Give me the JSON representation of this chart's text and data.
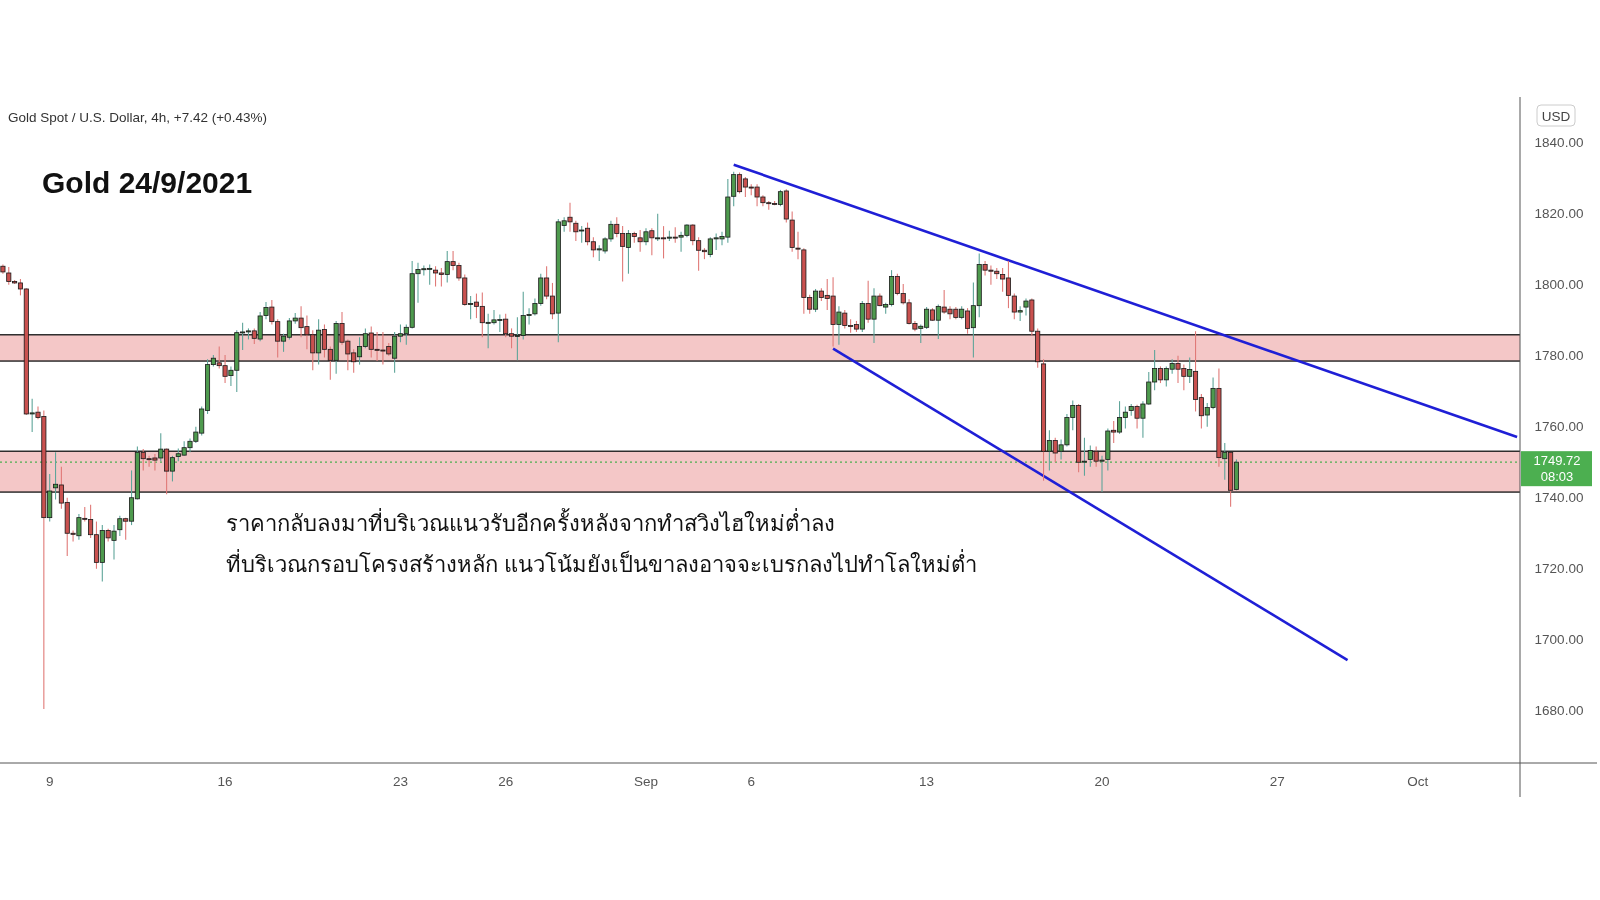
{
  "chart_data": {
    "type": "candlestick",
    "title": "Gold 24/9/2021",
    "subtitle": "Gold Spot / U.S. Dollar, 4h, +7.42 (+0.43%)",
    "ylabel": "USD",
    "annotations": [
      "ราคากลับลงมาที่บริเวณแนวรับอีกครั้งหลังจากทำสวิงไฮใหม่ต่ำลง",
      "ที่บริเวณกรอบโครงสร้างหลัก แนวโน้มยังเป็นขาลงอาจจะเบรกลงไปทำโลใหม่ต่ำ",
      "08:03"
    ],
    "ylim": [
      1665,
      1852
    ],
    "yticks": [
      {
        "value": 1680,
        "label": "1680.00"
      },
      {
        "value": 1700,
        "label": "1700.00"
      },
      {
        "value": 1720,
        "label": "1720.00"
      },
      {
        "value": 1740,
        "label": "1740.00"
      },
      {
        "value": 1760,
        "label": "1760.00"
      },
      {
        "value": 1780,
        "label": "1780.00"
      },
      {
        "value": 1800,
        "label": "1800.00"
      },
      {
        "value": 1820,
        "label": "1820.00"
      },
      {
        "value": 1840,
        "label": "1840.00"
      }
    ],
    "grid": false,
    "categories": [
      null,
      null,
      null,
      null,
      null,
      null,
      null,
      null,
      "9",
      null,
      null,
      null,
      null,
      null,
      null,
      null,
      null,
      null,
      null,
      null,
      null,
      null,
      null,
      null,
      null,
      null,
      null,
      null,
      null,
      null,
      null,
      null,
      null,
      null,
      null,
      null,
      null,
      null,
      "16",
      null,
      null,
      null,
      null,
      null,
      null,
      null,
      null,
      null,
      null,
      null,
      null,
      null,
      null,
      null,
      null,
      null,
      null,
      null,
      null,
      null,
      null,
      null,
      null,
      null,
      null,
      null,
      null,
      null,
      "23",
      null,
      null,
      null,
      null,
      null,
      null,
      null,
      null,
      null,
      null,
      null,
      null,
      null,
      null,
      null,
      null,
      null,
      "26",
      null,
      null,
      null,
      null,
      null,
      null,
      null,
      null,
      null,
      null,
      null,
      null,
      null,
      null,
      null,
      null,
      null,
      null,
      null,
      null,
      null,
      null,
      null,
      "Sep",
      null,
      null,
      null,
      null,
      null,
      null,
      null,
      null,
      null,
      null,
      null,
      null,
      null,
      null,
      null,
      null,
      null,
      "6",
      null,
      null,
      null,
      null,
      null,
      null,
      null,
      null,
      null,
      null,
      null,
      null,
      null,
      null,
      null,
      null,
      null,
      null,
      null,
      null,
      null,
      null,
      null,
      null,
      null,
      null,
      null,
      null,
      null,
      "13",
      null,
      null,
      null,
      null,
      null,
      null,
      null,
      null,
      null,
      null,
      null,
      null,
      null,
      null,
      null,
      null,
      null,
      null,
      null,
      null,
      null,
      null,
      null,
      null,
      null,
      null,
      null,
      null,
      null,
      "20",
      null,
      null,
      null,
      null,
      null,
      null,
      null,
      null,
      null,
      null,
      null,
      null,
      null,
      null,
      null,
      null,
      null,
      null,
      null,
      null,
      null,
      null,
      null,
      null,
      null,
      null,
      null,
      null,
      null,
      "27",
      null,
      null,
      null,
      null,
      null,
      null,
      null,
      null,
      null,
      null,
      null,
      null,
      null,
      null,
      null,
      null,
      null,
      null,
      null,
      null,
      null,
      null,
      null,
      "Oct",
      null,
      null,
      null,
      null,
      null,
      null,
      null,
      null,
      null,
      null,
      null,
      null,
      null,
      null,
      null,
      null,
      null
    ],
    "ohlc": [
      [
        1804.9,
        1805.4,
        1802.8,
        1803.3
      ],
      [
        1803.0,
        1804.7,
        1799.7,
        1800.6
      ],
      [
        1800.6,
        1801.0,
        1799.9,
        1800.2
      ],
      [
        1800.2,
        1801.3,
        1796.7,
        1798.5
      ],
      [
        1798.5,
        1798.7,
        1763.0,
        1763.3
      ],
      [
        1763.3,
        1767.6,
        1758.2,
        1763.6
      ],
      [
        1763.8,
        1765.4,
        1761.8,
        1762.3
      ],
      [
        1762.6,
        1764.3,
        1680.2,
        1734.1
      ],
      [
        1734.1,
        1746.4,
        1733.0,
        1741.6
      ],
      [
        1742.5,
        1752.5,
        1739.2,
        1743.5
      ],
      [
        1743.3,
        1748.4,
        1736.6,
        1738.2
      ],
      [
        1738.4,
        1739.7,
        1723.3,
        1729.7
      ],
      [
        1729.7,
        1730.5,
        1727.4,
        1729.4
      ],
      [
        1729.0,
        1735.1,
        1727.9,
        1734.1
      ],
      [
        1733.9,
        1737.1,
        1733.0,
        1733.8
      ],
      [
        1733.6,
        1737.7,
        1728.4,
        1729.3
      ],
      [
        1729.3,
        1733.0,
        1719.7,
        1721.5
      ],
      [
        1721.5,
        1732.0,
        1716.1,
        1730.5
      ],
      [
        1730.5,
        1731.0,
        1727.4,
        1728.4
      ],
      [
        1727.7,
        1732.0,
        1722.3,
        1730.3
      ],
      [
        1730.7,
        1734.6,
        1728.9,
        1733.8
      ],
      [
        1733.8,
        1734.1,
        1727.9,
        1733.1
      ],
      [
        1733.1,
        1747.4,
        1732.0,
        1739.7
      ],
      [
        1739.4,
        1754.1,
        1739.2,
        1752.5
      ],
      [
        1752.5,
        1753.4,
        1747.4,
        1750.7
      ],
      [
        1750.7,
        1751.5,
        1748.4,
        1750.6
      ],
      [
        1750.9,
        1752.0,
        1747.4,
        1750.3
      ],
      [
        1750.9,
        1757.9,
        1750.0,
        1753.4
      ],
      [
        1753.4,
        1753.6,
        1740.7,
        1747.2
      ],
      [
        1747.2,
        1751.5,
        1744.3,
        1751.0
      ],
      [
        1751.3,
        1753.6,
        1750.0,
        1752.1
      ],
      [
        1751.7,
        1755.6,
        1751.5,
        1753.8
      ],
      [
        1753.8,
        1756.4,
        1752.5,
        1755.6
      ],
      [
        1755.6,
        1759.7,
        1755.1,
        1758.2
      ],
      [
        1757.9,
        1765.4,
        1757.2,
        1764.7
      ],
      [
        1764.3,
        1778.7,
        1763.3,
        1777.2
      ],
      [
        1777.2,
        1779.9,
        1776.7,
        1779.0
      ],
      [
        1777.7,
        1782.3,
        1776.1,
        1776.9
      ],
      [
        1776.9,
        1779.9,
        1772.0,
        1773.9
      ],
      [
        1774.1,
        1776.7,
        1771.2,
        1775.6
      ],
      [
        1775.6,
        1786.9,
        1769.5,
        1786.2
      ],
      [
        1786.2,
        1789.0,
        1781.3,
        1786.4
      ],
      [
        1786.4,
        1787.4,
        1784.3,
        1786.7
      ],
      [
        1786.7,
        1787.4,
        1783.0,
        1784.6
      ],
      [
        1784.4,
        1792.0,
        1783.8,
        1790.9
      ],
      [
        1791.0,
        1794.8,
        1790.0,
        1793.3
      ],
      [
        1793.4,
        1795.4,
        1788.5,
        1789.3
      ],
      [
        1789.3,
        1790.0,
        1779.2,
        1783.8
      ],
      [
        1783.8,
        1785.9,
        1780.8,
        1785.2
      ],
      [
        1784.9,
        1790.3,
        1784.3,
        1789.5
      ],
      [
        1789.5,
        1791.7,
        1788.7,
        1790.3
      ],
      [
        1790.3,
        1793.6,
        1784.9,
        1787.6
      ],
      [
        1787.9,
        1791.0,
        1781.5,
        1785.6
      ],
      [
        1785.6,
        1786.9,
        1775.6,
        1780.5
      ],
      [
        1780.5,
        1790.0,
        1777.2,
        1786.9
      ],
      [
        1787.1,
        1788.5,
        1779.2,
        1781.5
      ],
      [
        1781.5,
        1782.3,
        1772.9,
        1778.4
      ],
      [
        1778.4,
        1789.5,
        1774.6,
        1788.8
      ],
      [
        1788.8,
        1792.0,
        1782.8,
        1783.5
      ],
      [
        1783.8,
        1784.3,
        1775.6,
        1780.2
      ],
      [
        1780.5,
        1781.5,
        1774.9,
        1778.0
      ],
      [
        1779.4,
        1784.9,
        1777.2,
        1782.3
      ],
      [
        1782.3,
        1787.4,
        1781.8,
        1785.9
      ],
      [
        1786.1,
        1787.9,
        1779.2,
        1781.5
      ],
      [
        1781.5,
        1786.4,
        1778.2,
        1781.3
      ],
      [
        1781.3,
        1786.4,
        1777.2,
        1781.2
      ],
      [
        1782.3,
        1783.3,
        1779.7,
        1780.2
      ],
      [
        1779.0,
        1786.4,
        1774.9,
        1785.2
      ],
      [
        1785.2,
        1788.5,
        1783.5,
        1785.9
      ],
      [
        1785.9,
        1788.5,
        1782.8,
        1787.7
      ],
      [
        1787.7,
        1806.4,
        1787.4,
        1802.8
      ],
      [
        1802.8,
        1805.9,
        1794.6,
        1804.0
      ],
      [
        1804.0,
        1805.1,
        1802.3,
        1804.2
      ],
      [
        1804.2,
        1805.4,
        1799.7,
        1804.3
      ],
      [
        1803.8,
        1804.9,
        1799.2,
        1803.0
      ],
      [
        1803.0,
        1804.4,
        1799.2,
        1802.6
      ],
      [
        1802.6,
        1809.2,
        1800.3,
        1806.2
      ],
      [
        1806.2,
        1809.2,
        1803.8,
        1805.1
      ],
      [
        1805.1,
        1805.9,
        1800.8,
        1801.6
      ],
      [
        1801.6,
        1802.6,
        1793.8,
        1794.1
      ],
      [
        1794.1,
        1796.5,
        1790.0,
        1794.4
      ],
      [
        1794.8,
        1797.2,
        1790.3,
        1793.6
      ],
      [
        1793.6,
        1797.5,
        1784.9,
        1789.0
      ],
      [
        1789.0,
        1791.5,
        1781.8,
        1789.1
      ],
      [
        1789.0,
        1792.6,
        1788.5,
        1789.8
      ],
      [
        1789.8,
        1791.3,
        1786.4,
        1789.9
      ],
      [
        1790.0,
        1791.5,
        1784.9,
        1785.9
      ],
      [
        1785.9,
        1787.4,
        1781.8,
        1785.2
      ],
      [
        1785.2,
        1790.5,
        1778.4,
        1785.4
      ],
      [
        1785.4,
        1797.7,
        1784.3,
        1791.0
      ],
      [
        1791.0,
        1793.1,
        1788.5,
        1791.3
      ],
      [
        1791.5,
        1795.8,
        1791.0,
        1794.4
      ],
      [
        1794.4,
        1802.8,
        1793.8,
        1801.6
      ],
      [
        1801.6,
        1804.9,
        1795.6,
        1796.5
      ],
      [
        1796.5,
        1800.2,
        1790.0,
        1791.5
      ],
      [
        1791.7,
        1818.2,
        1783.5,
        1817.4
      ],
      [
        1816.4,
        1818.7,
        1814.6,
        1817.7
      ],
      [
        1818.7,
        1822.8,
        1814.6,
        1817.4
      ],
      [
        1817.0,
        1817.7,
        1812.0,
        1814.6
      ],
      [
        1814.9,
        1816.2,
        1811.5,
        1815.1
      ],
      [
        1815.6,
        1817.2,
        1810.8,
        1811.8
      ],
      [
        1811.8,
        1813.1,
        1807.4,
        1809.5
      ],
      [
        1809.5,
        1810.8,
        1806.4,
        1809.8
      ],
      [
        1809.2,
        1813.1,
        1808.5,
        1812.6
      ],
      [
        1812.6,
        1817.7,
        1811.8,
        1816.7
      ],
      [
        1816.7,
        1818.7,
        1813.1,
        1814.1
      ],
      [
        1814.1,
        1816.2,
        1800.6,
        1810.5
      ],
      [
        1810.2,
        1815.1,
        1802.8,
        1814.1
      ],
      [
        1814.1,
        1814.6,
        1811.5,
        1813.3
      ],
      [
        1812.9,
        1815.1,
        1809.0,
        1811.8
      ],
      [
        1811.8,
        1815.6,
        1810.8,
        1814.6
      ],
      [
        1814.9,
        1815.6,
        1808.0,
        1812.9
      ],
      [
        1812.8,
        1819.7,
        1812.0,
        1812.9
      ],
      [
        1812.9,
        1816.2,
        1807.1,
        1812.8
      ],
      [
        1812.8,
        1814.9,
        1812.0,
        1813.1
      ],
      [
        1813.1,
        1815.9,
        1811.5,
        1813.0
      ],
      [
        1813.1,
        1814.6,
        1809.0,
        1813.6
      ],
      [
        1813.6,
        1816.7,
        1813.1,
        1816.5
      ],
      [
        1816.5,
        1816.7,
        1810.8,
        1812.1
      ],
      [
        1812.1,
        1813.1,
        1803.6,
        1809.4
      ],
      [
        1809.4,
        1810.0,
        1806.9,
        1809.0
      ],
      [
        1808.2,
        1813.1,
        1807.4,
        1812.6
      ],
      [
        1812.6,
        1814.1,
        1809.5,
        1812.9
      ],
      [
        1812.6,
        1814.6,
        1810.8,
        1813.3
      ],
      [
        1813.1,
        1829.5,
        1811.5,
        1824.4
      ],
      [
        1824.6,
        1831.5,
        1821.8,
        1830.7
      ],
      [
        1830.7,
        1831.3,
        1825.4,
        1825.9
      ],
      [
        1829.5,
        1830.0,
        1824.4,
        1827.2
      ],
      [
        1827.2,
        1828.0,
        1824.9,
        1827.0
      ],
      [
        1827.2,
        1828.0,
        1821.8,
        1824.4
      ],
      [
        1824.4,
        1824.9,
        1821.8,
        1822.8
      ],
      [
        1822.8,
        1823.3,
        1820.8,
        1822.6
      ],
      [
        1822.6,
        1823.3,
        1822.1,
        1822.4
      ],
      [
        1822.3,
        1826.4,
        1821.8,
        1825.9
      ],
      [
        1826.1,
        1826.6,
        1817.2,
        1818.2
      ],
      [
        1817.9,
        1820.3,
        1809.0,
        1810.2
      ],
      [
        1810.0,
        1814.6,
        1806.9,
        1809.8
      ],
      [
        1809.5,
        1810.0,
        1791.5,
        1796.1
      ],
      [
        1796.1,
        1796.9,
        1791.5,
        1792.8
      ],
      [
        1792.8,
        1798.5,
        1792.0,
        1797.9
      ],
      [
        1797.9,
        1798.7,
        1795.1,
        1796.1
      ],
      [
        1796.7,
        1801.3,
        1792.6,
        1795.8
      ],
      [
        1796.5,
        1801.8,
        1782.3,
        1788.5
      ],
      [
        1788.5,
        1793.6,
        1782.8,
        1792.0
      ],
      [
        1791.7,
        1792.6,
        1787.4,
        1788.2
      ],
      [
        1788.2,
        1790.0,
        1786.2,
        1788.0
      ],
      [
        1788.5,
        1789.5,
        1786.4,
        1787.2
      ],
      [
        1787.2,
        1795.1,
        1786.4,
        1794.4
      ],
      [
        1794.4,
        1800.8,
        1789.0,
        1790.0
      ],
      [
        1790.0,
        1798.7,
        1783.3,
        1796.5
      ],
      [
        1796.5,
        1797.2,
        1793.6,
        1793.8
      ],
      [
        1793.4,
        1794.6,
        1791.5,
        1794.1
      ],
      [
        1794.1,
        1803.8,
        1793.6,
        1802.0
      ],
      [
        1802.0,
        1802.8,
        1796.7,
        1797.2
      ],
      [
        1797.2,
        1799.9,
        1794.1,
        1794.6
      ],
      [
        1794.6,
        1795.6,
        1788.5,
        1788.8
      ],
      [
        1788.8,
        1789.5,
        1786.6,
        1787.2
      ],
      [
        1787.4,
        1788.5,
        1783.3,
        1788.0
      ],
      [
        1787.7,
        1793.4,
        1787.2,
        1792.8
      ],
      [
        1792.6,
        1793.1,
        1789.5,
        1789.7
      ],
      [
        1789.7,
        1794.1,
        1784.4,
        1793.6
      ],
      [
        1793.4,
        1798.2,
        1791.5,
        1792.0
      ],
      [
        1792.8,
        1793.6,
        1790.0,
        1791.5
      ],
      [
        1792.8,
        1793.4,
        1790.0,
        1790.5
      ],
      [
        1790.5,
        1793.6,
        1790.0,
        1792.8
      ],
      [
        1792.3,
        1793.1,
        1785.9,
        1787.4
      ],
      [
        1787.6,
        1800.3,
        1779.2,
        1793.8
      ],
      [
        1793.8,
        1808.5,
        1790.5,
        1805.4
      ],
      [
        1805.4,
        1806.4,
        1802.3,
        1803.8
      ],
      [
        1803.8,
        1805.1,
        1799.7,
        1803.5
      ],
      [
        1803.5,
        1804.4,
        1801.3,
        1802.8
      ],
      [
        1802.6,
        1804.4,
        1797.7,
        1801.3
      ],
      [
        1801.6,
        1806.4,
        1793.1,
        1796.7
      ],
      [
        1796.5,
        1797.2,
        1790.0,
        1792.0
      ],
      [
        1792.0,
        1793.6,
        1789.5,
        1792.4
      ],
      [
        1793.4,
        1795.8,
        1791.0,
        1795.1
      ],
      [
        1795.4,
        1795.8,
        1785.4,
        1786.6
      ],
      [
        1786.6,
        1787.4,
        1776.3,
        1778.0
      ],
      [
        1777.4,
        1778.7,
        1744.5,
        1752.8
      ],
      [
        1752.8,
        1758.7,
        1747.4,
        1755.8
      ],
      [
        1755.8,
        1756.6,
        1749.7,
        1752.3
      ],
      [
        1752.8,
        1756.1,
        1750.5,
        1754.6
      ],
      [
        1754.6,
        1763.3,
        1754.1,
        1762.3
      ],
      [
        1762.3,
        1767.1,
        1758.7,
        1765.7
      ],
      [
        1765.7,
        1766.1,
        1746.9,
        1749.7
      ],
      [
        1749.9,
        1756.6,
        1745.9,
        1750.0
      ],
      [
        1750.5,
        1754.4,
        1748.4,
        1753.0
      ],
      [
        1752.8,
        1754.1,
        1748.4,
        1750.0
      ],
      [
        1750.0,
        1751.5,
        1741.3,
        1750.3
      ],
      [
        1750.5,
        1759.2,
        1747.4,
        1758.5
      ],
      [
        1758.7,
        1761.3,
        1755.1,
        1758.2
      ],
      [
        1758.2,
        1766.9,
        1757.7,
        1762.3
      ],
      [
        1762.3,
        1765.4,
        1759.2,
        1763.8
      ],
      [
        1764.3,
        1766.1,
        1762.8,
        1765.4
      ],
      [
        1765.4,
        1765.9,
        1759.2,
        1762.1
      ],
      [
        1762.1,
        1766.9,
        1756.6,
        1766.1
      ],
      [
        1766.1,
        1775.1,
        1765.9,
        1772.3
      ],
      [
        1772.3,
        1781.3,
        1770.0,
        1776.1
      ],
      [
        1776.1,
        1776.7,
        1772.0,
        1772.9
      ],
      [
        1772.9,
        1776.7,
        1771.0,
        1776.1
      ],
      [
        1775.9,
        1778.7,
        1774.6,
        1777.5
      ],
      [
        1777.5,
        1779.7,
        1772.0,
        1775.9
      ],
      [
        1776.1,
        1777.2,
        1770.0,
        1773.9
      ],
      [
        1773.9,
        1779.2,
        1772.0,
        1775.8
      ],
      [
        1775.3,
        1786.6,
        1764.0,
        1767.4
      ],
      [
        1767.9,
        1768.9,
        1759.2,
        1762.8
      ],
      [
        1763.0,
        1766.4,
        1759.7,
        1765.1
      ],
      [
        1765.1,
        1773.6,
        1764.6,
        1770.5
      ],
      [
        1770.5,
        1776.1,
        1748.4,
        1751.0
      ],
      [
        1750.7,
        1755.1,
        1744.8,
        1752.5
      ],
      [
        1752.5,
        1752.5,
        1737.2,
        1741.8
      ],
      [
        1742.0,
        1750.5,
        1741.8,
        1749.72
      ],
      null,
      null,
      null,
      null,
      null,
      null,
      null,
      null,
      null,
      null,
      null,
      null,
      null,
      null,
      null,
      null,
      null,
      null,
      null,
      null,
      null,
      null,
      null,
      null,
      null,
      null,
      null,
      null,
      null,
      null,
      null,
      null,
      null,
      null,
      null,
      null,
      null,
      null,
      null,
      null,
      null,
      null,
      null,
      null,
      null,
      null,
      null,
      null
    ],
    "series": [
      {
        "type": "line",
        "color": "#1f1fd6",
        "values": [
          null,
          null,
          null,
          null,
          null,
          null,
          null,
          null,
          null,
          null,
          null,
          null,
          null,
          null,
          null,
          null,
          null,
          null,
          null,
          null,
          null,
          null,
          null,
          null,
          null,
          null,
          null,
          null,
          null,
          null,
          null,
          null,
          null,
          null,
          null,
          null,
          null,
          null,
          null,
          null,
          null,
          null,
          null,
          null,
          null,
          null,
          null,
          null,
          null,
          null,
          null,
          null,
          null,
          null,
          null,
          null,
          null,
          null,
          null,
          null,
          null,
          null,
          null,
          null,
          null,
          null,
          null,
          null,
          null,
          null,
          null,
          null,
          null,
          null,
          null,
          null,
          null,
          null,
          null,
          null,
          null,
          null,
          null,
          null,
          null,
          null,
          null,
          null,
          null,
          null,
          null,
          null,
          null,
          null,
          null,
          null,
          null,
          null,
          null,
          null,
          null,
          null,
          null,
          null,
          null,
          null,
          null,
          null,
          null,
          null,
          null,
          null,
          null,
          null,
          null,
          null,
          null,
          null,
          null,
          null,
          null,
          null,
          null,
          null,
          null,
          1833.5,
          null,
          null,
          null,
          null,
          null,
          null,
          null,
          null,
          null,
          null,
          null,
          null,
          null,
          null,
          null,
          null,
          null,
          null,
          null,
          null,
          null,
          null,
          null,
          null,
          null,
          null,
          null,
          null,
          null,
          null,
          null,
          null,
          null,
          null,
          null,
          null,
          null,
          null,
          null,
          null,
          null,
          null,
          null,
          null,
          null,
          null,
          null,
          null,
          null,
          null,
          null,
          null,
          null,
          null,
          null,
          null,
          null,
          null,
          null,
          null,
          null,
          null,
          null,
          null,
          null,
          null,
          null,
          null,
          null,
          null,
          null,
          null,
          null,
          null,
          null,
          null,
          null,
          null,
          null,
          null,
          null,
          null,
          null,
          null,
          null,
          null,
          null,
          null,
          null,
          null,
          null,
          null,
          null,
          null,
          null,
          null,
          null,
          null,
          null,
          null,
          null,
          null,
          null,
          null,
          null,
          null,
          null,
          null,
          null,
          null,
          null,
          null,
          null,
          null,
          null,
          null,
          null,
          null,
          null,
          null,
          null,
          null,
          null,
          null,
          null,
          null,
          null,
          null,
          null,
          null,
          null,
          null,
          null,
          1756.8
        ]
      },
      {
        "type": "line",
        "color": "#1f1fd6",
        "values": [
          null,
          null,
          null,
          null,
          null,
          null,
          null,
          null,
          null,
          null,
          null,
          null,
          null,
          null,
          null,
          null,
          null,
          null,
          null,
          null,
          null,
          null,
          null,
          null,
          null,
          null,
          null,
          null,
          null,
          null,
          null,
          null,
          null,
          null,
          null,
          null,
          null,
          null,
          null,
          null,
          null,
          null,
          null,
          null,
          null,
          null,
          null,
          null,
          null,
          null,
          null,
          null,
          null,
          null,
          null,
          null,
          null,
          null,
          null,
          null,
          null,
          null,
          null,
          null,
          null,
          null,
          null,
          null,
          null,
          null,
          null,
          null,
          null,
          null,
          null,
          null,
          null,
          null,
          null,
          null,
          null,
          null,
          null,
          null,
          null,
          null,
          null,
          null,
          null,
          null,
          null,
          null,
          null,
          null,
          null,
          null,
          null,
          null,
          null,
          null,
          null,
          null,
          null,
          null,
          null,
          null,
          null,
          null,
          null,
          null,
          null,
          null,
          null,
          null,
          null,
          null,
          null,
          null,
          null,
          null,
          null,
          null,
          null,
          null,
          null,
          null,
          null,
          null,
          null,
          null,
          null,
          null,
          null,
          null,
          null,
          null,
          null,
          null,
          null,
          null,
          null,
          null,
          1781.7,
          null,
          null,
          null,
          null,
          null,
          null,
          null,
          null,
          null,
          null,
          null,
          null,
          null,
          null,
          null,
          null,
          null,
          null,
          null,
          null,
          null,
          null,
          null,
          null,
          null,
          null,
          null,
          null,
          null,
          null,
          null,
          null,
          null,
          null,
          null,
          null,
          null,
          null,
          null,
          null,
          null,
          null,
          null,
          null,
          null,
          null,
          null,
          null,
          null,
          null,
          null,
          null,
          null,
          null,
          null,
          null,
          null,
          null,
          null,
          null,
          null,
          null,
          null,
          null,
          null,
          null,
          null,
          null,
          null,
          null,
          null,
          null,
          null,
          null,
          null,
          null,
          null,
          null,
          null,
          null,
          null,
          null,
          null,
          null,
          null,
          null,
          null,
          1694.0,
          null,
          null,
          null,
          null,
          null,
          null,
          null,
          null,
          null,
          null,
          null,
          null,
          null,
          null,
          null,
          null,
          null,
          null,
          null,
          null,
          null,
          null,
          null,
          null,
          null,
          null,
          null,
          null,
          null
        ]
      }
    ],
    "ref_lines": [
      {
        "axis": "y",
        "value": 1749.72,
        "label": "1749.72",
        "color": "#4caf50",
        "line_style": "dotted"
      }
    ],
    "bands": [
      {
        "axis": "y",
        "from": 1778.2,
        "to": 1785.6,
        "color": "#f4c7c7"
      },
      {
        "axis": "y",
        "from": 1741.3,
        "to": 1752.8,
        "color": "#f4c7c7"
      }
    ]
  }
}
